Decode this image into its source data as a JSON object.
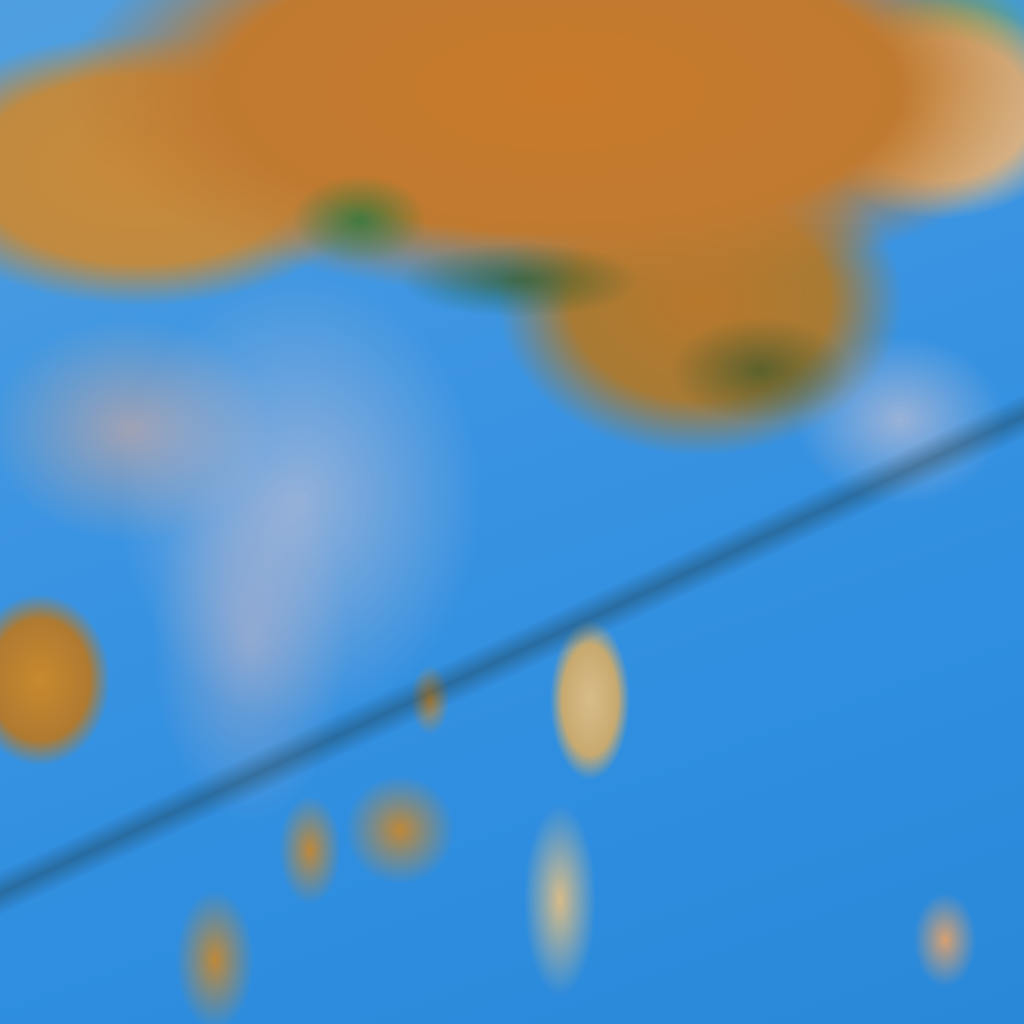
{
  "image": {
    "kind": "false-color satellite imagery",
    "colors": {
      "ocean": "#3b94e2",
      "land_dominant": "#c87a2a",
      "land_light": "#d8bc88",
      "vegetation": "#2f7a3c",
      "cloud_haze": "#dcc8d0"
    }
  }
}
